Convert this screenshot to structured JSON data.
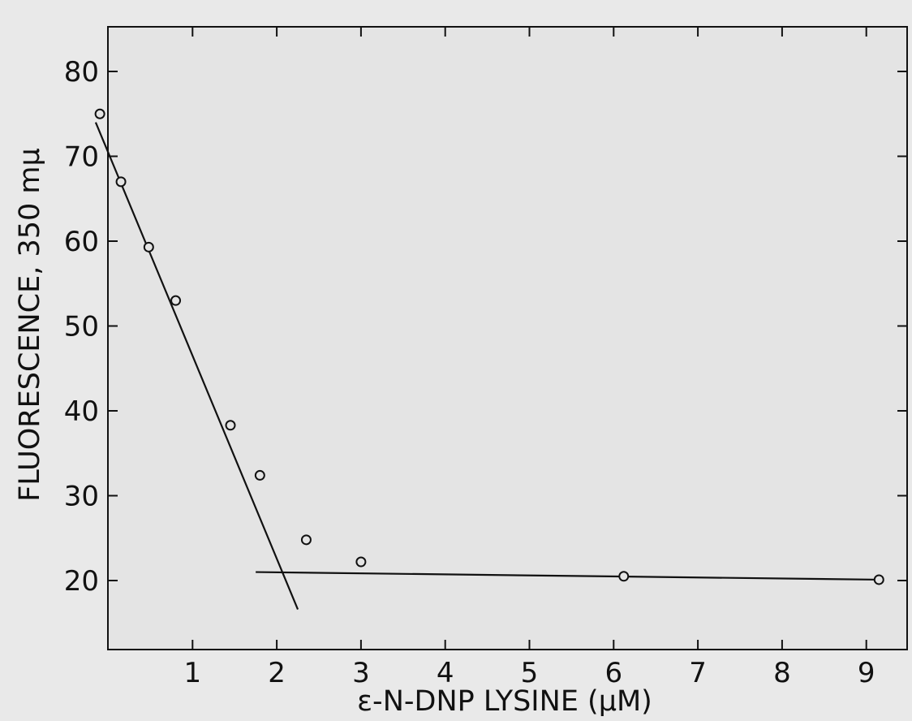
{
  "chart_data": {
    "type": "scatter",
    "title": "",
    "xlabel": "ε-N-DNP LYSINE (μM)",
    "ylabel": "FLUORESCENCE, 350 mμ",
    "xlim": [
      0,
      9.5
    ],
    "ylim": [
      13,
      85
    ],
    "x_ticks": [
      1,
      2,
      3,
      4,
      5,
      6,
      7,
      8,
      9
    ],
    "x_tick_labels": [
      "1",
      "2",
      "3",
      "4",
      "5",
      "6",
      "7",
      "8",
      "9"
    ],
    "y_ticks": [
      20,
      30,
      40,
      50,
      60,
      70,
      80
    ],
    "y_tick_labels": [
      "20",
      "30",
      "40",
      "50",
      "60",
      "70",
      "80"
    ],
    "grid": false,
    "points": [
      {
        "x": -0.1,
        "y": 75
      },
      {
        "x": 0.15,
        "y": 67
      },
      {
        "x": 0.48,
        "y": 59.3
      },
      {
        "x": 0.8,
        "y": 53
      },
      {
        "x": 1.45,
        "y": 38.3
      },
      {
        "x": 1.8,
        "y": 32.4
      },
      {
        "x": 2.35,
        "y": 24.8
      },
      {
        "x": 3.0,
        "y": 22.2
      },
      {
        "x": 6.12,
        "y": 20.5
      },
      {
        "x": 9.15,
        "y": 20.1
      }
    ],
    "fit_lines": [
      {
        "x": [
          -0.15,
          2.25
        ],
        "y": [
          74,
          16.6
        ]
      },
      {
        "x": [
          1.75,
          9.15
        ],
        "y": [
          21,
          20.1
        ]
      }
    ]
  }
}
